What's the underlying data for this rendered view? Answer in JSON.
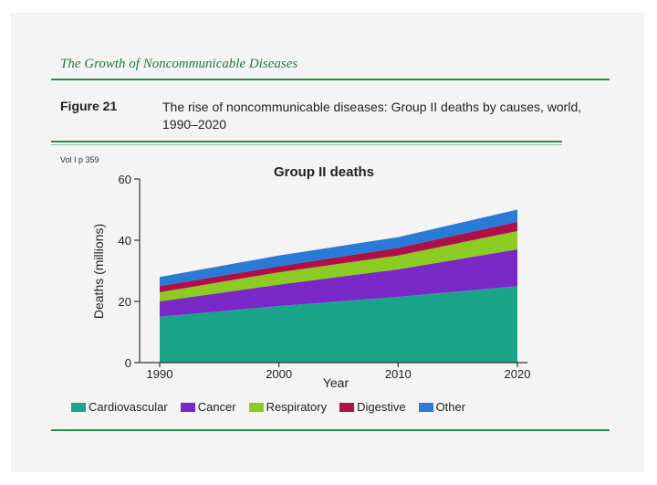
{
  "slide": {
    "header_title": "The Growth of Noncommunicable Diseases",
    "figure_label": "Figure 21",
    "figure_caption": "The rise of noncommunicable diseases: Group II deaths by causes, world, 1990–2020",
    "volume_note": "Vol I p 359"
  },
  "chart_data": {
    "type": "area",
    "stacked": true,
    "title": "Group II deaths",
    "xlabel": "Year",
    "ylabel": "Deaths (millions)",
    "x": [
      1990,
      2000,
      2010,
      2020
    ],
    "xlim": [
      1990,
      2020
    ],
    "ylim": [
      0,
      60
    ],
    "yticks": [
      0,
      20,
      40,
      60
    ],
    "xticks": [
      1990,
      2000,
      2010,
      2020
    ],
    "series": [
      {
        "name": "Cardiovascular",
        "color": "#1aa58a",
        "values": [
          15,
          18.5,
          21.5,
          25
        ]
      },
      {
        "name": "Cancer",
        "color": "#7a28c8",
        "values": [
          5,
          7,
          9,
          12
        ]
      },
      {
        "name": "Respiratory",
        "color": "#8ccc22",
        "values": [
          3,
          4,
          4.5,
          6
        ]
      },
      {
        "name": "Digestive",
        "color": "#b01048",
        "values": [
          2,
          2,
          2.5,
          3
        ]
      },
      {
        "name": "Other",
        "color": "#2a7ad8",
        "values": [
          3,
          3.5,
          3.5,
          4
        ]
      }
    ],
    "legend_position": "bottom"
  }
}
